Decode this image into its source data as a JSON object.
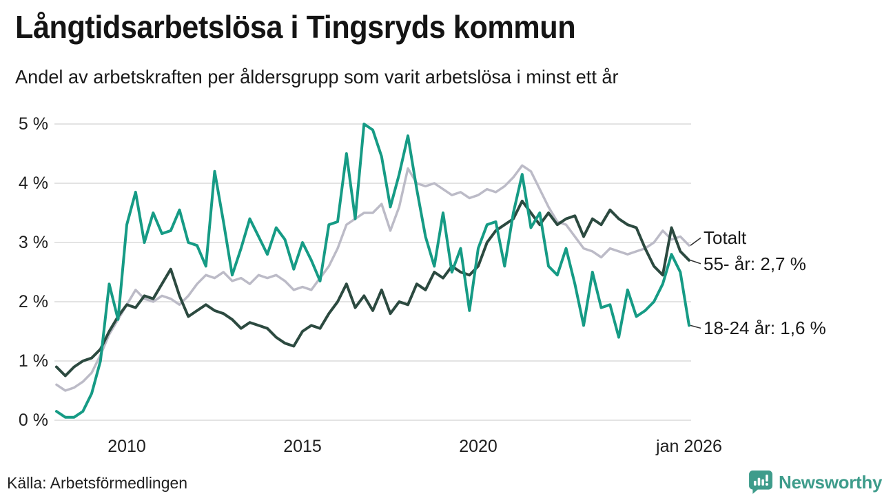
{
  "header": {
    "title": "Långtidsarbetslösa i Tingsryds kommun",
    "subtitle": "Andel av arbetskraften per åldersgrupp som varit arbetslösa i minst ett år"
  },
  "source": {
    "label": "Källa: Arbetsförmedlingen"
  },
  "branding": {
    "name": "Newsworthy",
    "color": "#3e9c8b"
  },
  "chart_data": {
    "type": "line",
    "title": "Långtidsarbetslösa i Tingsryds kommun",
    "subtitle": "Andel av arbetskraften per åldersgrupp som varit arbetslösa i minst ett år",
    "xlabel": "",
    "ylabel": "",
    "unit": "% av arbetskraften",
    "grid": "horizontal",
    "legend_position": "right-end-labels",
    "xlim": [
      2008.0,
      2026.0
    ],
    "ylim": [
      0,
      5
    ],
    "x_start": 2008.0,
    "x_step": 0.25,
    "x_ticks": [
      {
        "value": 2010,
        "label": "2010"
      },
      {
        "value": 2015,
        "label": "2015"
      },
      {
        "value": 2020,
        "label": "2020"
      },
      {
        "value": 2026,
        "label": "jan 2026"
      }
    ],
    "y_ticks": [
      {
        "value": 0,
        "label": "0 %"
      },
      {
        "value": 1,
        "label": "1 %"
      },
      {
        "value": 2,
        "label": "2 %"
      },
      {
        "value": 3,
        "label": "3 %"
      },
      {
        "value": 4,
        "label": "4 %"
      },
      {
        "value": 5,
        "label": "5 %"
      }
    ],
    "series": [
      {
        "name": "Totalt",
        "color": "#bcbbc7",
        "stroke_width": 3.5,
        "end_label": "Totalt",
        "last_value": 2.95,
        "values": [
          0.6,
          0.5,
          0.55,
          0.65,
          0.8,
          1.1,
          1.45,
          1.7,
          1.95,
          2.2,
          2.05,
          2.0,
          2.1,
          2.05,
          1.95,
          2.1,
          2.3,
          2.45,
          2.4,
          2.5,
          2.35,
          2.4,
          2.3,
          2.45,
          2.4,
          2.45,
          2.35,
          2.2,
          2.25,
          2.2,
          2.4,
          2.6,
          2.9,
          3.3,
          3.4,
          3.5,
          3.5,
          3.65,
          3.2,
          3.6,
          4.25,
          4.0,
          3.95,
          4.0,
          3.9,
          3.8,
          3.85,
          3.75,
          3.8,
          3.9,
          3.85,
          3.95,
          4.1,
          4.3,
          4.2,
          3.9,
          3.6,
          3.35,
          3.3,
          3.1,
          2.9,
          2.85,
          2.75,
          2.9,
          2.85,
          2.8,
          2.85,
          2.9,
          3.0,
          3.2,
          3.05,
          3.1,
          2.95
        ]
      },
      {
        "name": "55- år",
        "color": "#2c4a40",
        "stroke_width": 4,
        "end_label": "55- år: 2,7 %",
        "last_value": 2.7,
        "values": [
          0.9,
          0.75,
          0.9,
          1.0,
          1.05,
          1.2,
          1.5,
          1.75,
          1.95,
          1.9,
          2.1,
          2.05,
          2.3,
          2.55,
          2.1,
          1.75,
          1.85,
          1.95,
          1.85,
          1.8,
          1.7,
          1.55,
          1.65,
          1.6,
          1.55,
          1.4,
          1.3,
          1.25,
          1.5,
          1.6,
          1.55,
          1.8,
          2.0,
          2.3,
          1.9,
          2.1,
          1.85,
          2.2,
          1.8,
          2.0,
          1.95,
          2.3,
          2.2,
          2.5,
          2.4,
          2.6,
          2.5,
          2.45,
          2.6,
          3.0,
          3.2,
          3.3,
          3.4,
          3.7,
          3.5,
          3.3,
          3.5,
          3.3,
          3.4,
          3.45,
          3.1,
          3.4,
          3.3,
          3.55,
          3.4,
          3.3,
          3.25,
          2.9,
          2.6,
          2.45,
          3.25,
          2.85,
          2.7
        ]
      },
      {
        "name": "18-24 år",
        "color": "#169b85",
        "stroke_width": 4,
        "end_label": "18-24 år: 1,6 %",
        "last_value": 1.6,
        "values": [
          0.15,
          0.05,
          0.05,
          0.15,
          0.45,
          1.0,
          2.3,
          1.7,
          3.3,
          3.85,
          3.0,
          3.5,
          3.15,
          3.2,
          3.55,
          3.0,
          2.95,
          2.6,
          4.2,
          3.35,
          2.45,
          2.9,
          3.4,
          3.1,
          2.8,
          3.25,
          3.05,
          2.55,
          3.0,
          2.7,
          2.35,
          3.3,
          3.35,
          4.5,
          3.4,
          5.0,
          4.9,
          4.45,
          3.6,
          4.15,
          4.8,
          3.9,
          3.1,
          2.6,
          3.5,
          2.5,
          2.9,
          1.85,
          2.9,
          3.3,
          3.35,
          2.6,
          3.5,
          4.15,
          3.25,
          3.5,
          2.6,
          2.45,
          2.9,
          2.3,
          1.6,
          2.5,
          1.9,
          1.95,
          1.4,
          2.2,
          1.75,
          1.85,
          2.0,
          2.3,
          2.8,
          2.5,
          1.6
        ]
      }
    ],
    "annotations": [
      {
        "text": "Totalt",
        "series_index": 0
      },
      {
        "text": "55- år: 2,7 %",
        "series_index": 1
      },
      {
        "text": "18-24 år: 1,6 %",
        "series_index": 2
      }
    ]
  }
}
